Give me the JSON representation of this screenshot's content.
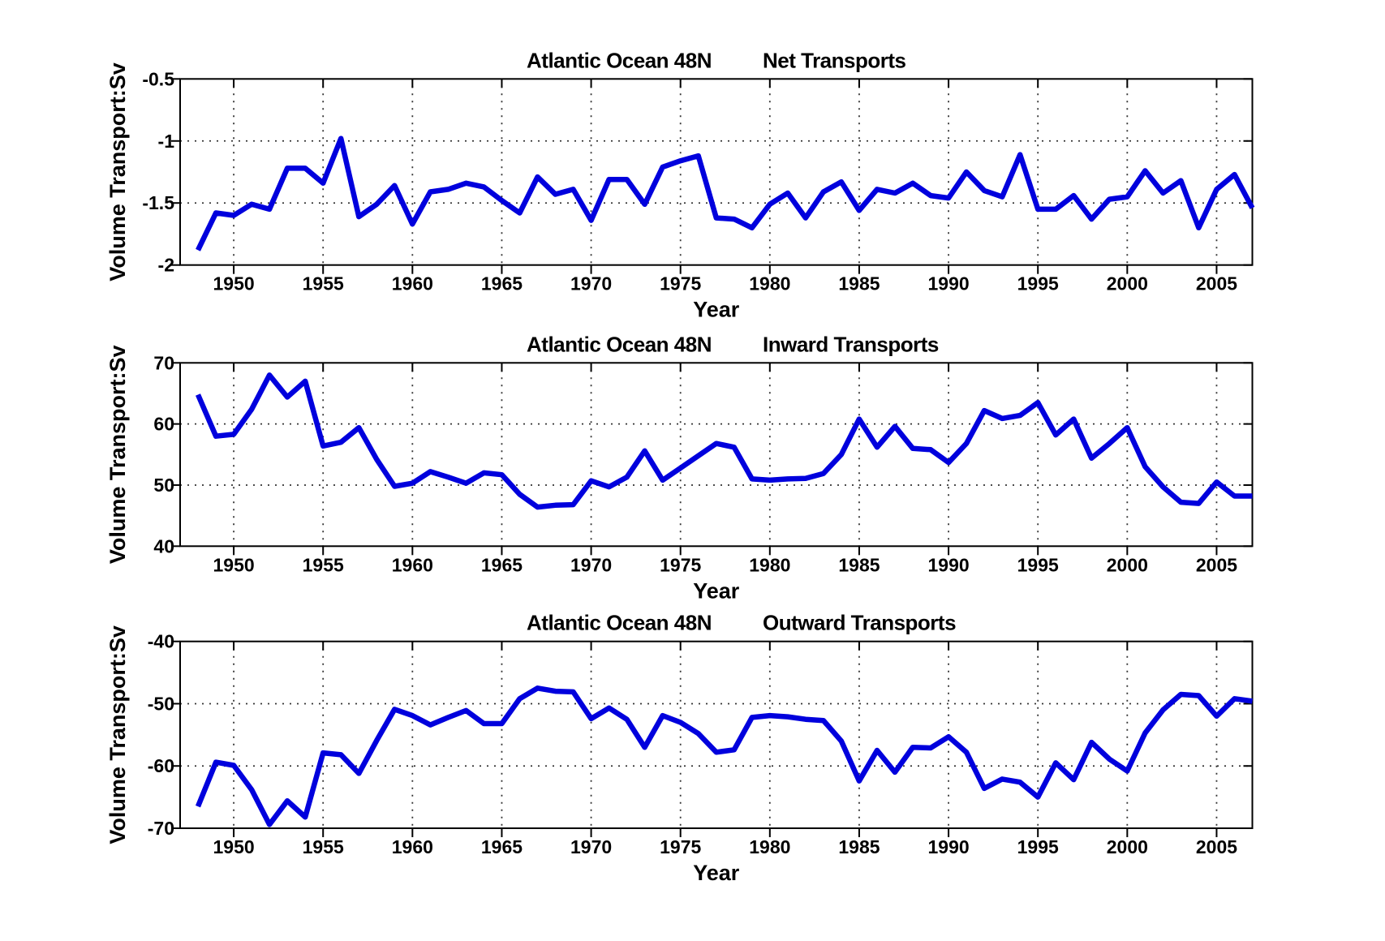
{
  "figure": {
    "background": "#ffffff",
    "line_color": "#0000dd",
    "axis_color": "#000000",
    "grid_color": "#333333"
  },
  "chart_data": [
    {
      "type": "line",
      "title_location": "Atlantic Ocean 48N",
      "title_label": "Net Transports",
      "ylabel": "Volume Transport:Sv",
      "xlabel": "Year",
      "legend": null,
      "grid": "dotted",
      "xlim": [
        1947,
        2007
      ],
      "ylim": [
        -2,
        -0.5
      ],
      "ytick_labels": [
        "-0.5",
        "-1",
        "-1.5",
        "-2"
      ],
      "yticks": [
        -0.5,
        -1,
        -1.5,
        -2
      ],
      "xtick_labels": [
        "1950",
        "1955",
        "1960",
        "1965",
        "1970",
        "1975",
        "1980",
        "1985",
        "1990",
        "1995",
        "2000",
        "2005"
      ],
      "xticks": [
        1950,
        1955,
        1960,
        1965,
        1970,
        1975,
        1980,
        1985,
        1990,
        1995,
        2000,
        2005
      ],
      "x": [
        1948,
        1949,
        1950,
        1951,
        1952,
        1953,
        1954,
        1955,
        1956,
        1957,
        1958,
        1959,
        1960,
        1961,
        1962,
        1963,
        1964,
        1965,
        1966,
        1967,
        1968,
        1969,
        1970,
        1971,
        1972,
        1973,
        1974,
        1975,
        1976,
        1977,
        1978,
        1979,
        1980,
        1981,
        1982,
        1983,
        1984,
        1985,
        1986,
        1987,
        1988,
        1989,
        1990,
        1991,
        1992,
        1993,
        1994,
        1995,
        1996,
        1997,
        1998,
        1999,
        2000,
        2001,
        2002,
        2003,
        2004,
        2005,
        2006,
        2007
      ],
      "values": [
        -1.88,
        -1.58,
        -1.6,
        -1.51,
        -1.55,
        -1.22,
        -1.22,
        -1.34,
        -0.98,
        -1.61,
        -1.51,
        -1.36,
        -1.67,
        -1.41,
        -1.39,
        -1.34,
        -1.37,
        -1.48,
        -1.58,
        -1.29,
        -1.43,
        -1.39,
        -1.64,
        -1.31,
        -1.31,
        -1.51,
        -1.21,
        -1.16,
        -1.12,
        -1.62,
        -1.63,
        -1.7,
        -1.51,
        -1.42,
        -1.62,
        -1.41,
        -1.33,
        -1.56,
        -1.39,
        -1.42,
        -1.34,
        -1.44,
        -1.46,
        -1.25,
        -1.4,
        -1.45,
        -1.11,
        -1.55,
        -1.55,
        -1.44,
        -1.63,
        -1.47,
        -1.45,
        -1.24,
        -1.42,
        -1.32,
        -1.7,
        -1.39,
        -1.27,
        -1.54
      ]
    },
    {
      "type": "line",
      "title_location": "Atlantic Ocean 48N",
      "title_label": "Inward Transports",
      "ylabel": "Volume Transport:Sv",
      "xlabel": "Year",
      "legend": null,
      "grid": "dotted",
      "xlim": [
        1947,
        2007
      ],
      "ylim": [
        40,
        70
      ],
      "ytick_labels": [
        "70",
        "60",
        "50",
        "40"
      ],
      "yticks": [
        70,
        60,
        50,
        40
      ],
      "xtick_labels": [
        "1950",
        "1955",
        "1960",
        "1965",
        "1970",
        "1975",
        "1980",
        "1985",
        "1990",
        "1995",
        "2000",
        "2005"
      ],
      "xticks": [
        1950,
        1955,
        1960,
        1965,
        1970,
        1975,
        1980,
        1985,
        1990,
        1995,
        2000,
        2005
      ],
      "x": [
        1948,
        1949,
        1950,
        1951,
        1952,
        1953,
        1954,
        1955,
        1956,
        1957,
        1958,
        1959,
        1960,
        1961,
        1962,
        1963,
        1964,
        1965,
        1966,
        1967,
        1968,
        1969,
        1970,
        1971,
        1972,
        1973,
        1974,
        1975,
        1976,
        1977,
        1978,
        1979,
        1980,
        1981,
        1982,
        1983,
        1984,
        1985,
        1986,
        1987,
        1988,
        1989,
        1990,
        1991,
        1992,
        1993,
        1994,
        1995,
        1996,
        1997,
        1998,
        1999,
        2000,
        2001,
        2002,
        2003,
        2004,
        2005,
        2006,
        2007
      ],
      "values": [
        64.8,
        58.0,
        58.3,
        62.4,
        68.0,
        64.4,
        67.0,
        56.4,
        57.0,
        59.4,
        54.2,
        49.8,
        50.3,
        52.2,
        51.3,
        50.3,
        52.0,
        51.7,
        48.5,
        46.4,
        46.7,
        46.8,
        50.7,
        49.7,
        51.3,
        55.6,
        50.8,
        52.8,
        54.8,
        56.8,
        56.2,
        51.0,
        50.8,
        51.0,
        51.1,
        51.9,
        55.0,
        60.8,
        56.2,
        59.6,
        56.0,
        55.8,
        53.7,
        56.8,
        62.2,
        60.9,
        61.4,
        63.5,
        58.2,
        60.8,
        54.4,
        56.8,
        59.4,
        53.0,
        49.7,
        47.2,
        47.0,
        50.5,
        48.2,
        48.2
      ]
    },
    {
      "type": "line",
      "title_location": "Atlantic Ocean 48N",
      "title_label": "Outward Transports",
      "ylabel": "Volume Transport:Sv",
      "xlabel": "Year",
      "legend": null,
      "grid": "dotted",
      "xlim": [
        1947,
        2007
      ],
      "ylim": [
        -70,
        -40
      ],
      "ytick_labels": [
        "-40",
        "-50",
        "-60",
        "-70"
      ],
      "yticks": [
        -40,
        -50,
        -60,
        -70
      ],
      "xtick_labels": [
        "1950",
        "1955",
        "1960",
        "1965",
        "1970",
        "1975",
        "1980",
        "1985",
        "1990",
        "1995",
        "2000",
        "2005"
      ],
      "xticks": [
        1950,
        1955,
        1960,
        1965,
        1970,
        1975,
        1980,
        1985,
        1990,
        1995,
        2000,
        2005
      ],
      "x": [
        1948,
        1949,
        1950,
        1951,
        1952,
        1953,
        1954,
        1955,
        1956,
        1957,
        1958,
        1959,
        1960,
        1961,
        1962,
        1963,
        1964,
        1965,
        1966,
        1967,
        1968,
        1969,
        1970,
        1971,
        1972,
        1973,
        1974,
        1975,
        1976,
        1977,
        1978,
        1979,
        1980,
        1981,
        1982,
        1983,
        1984,
        1985,
        1986,
        1987,
        1988,
        1989,
        1990,
        1991,
        1992,
        1993,
        1994,
        1995,
        1996,
        1997,
        1998,
        1999,
        2000,
        2001,
        2002,
        2003,
        2004,
        2005,
        2006,
        2007
      ],
      "values": [
        -66.5,
        -59.4,
        -59.9,
        -63.8,
        -69.4,
        -65.6,
        -68.2,
        -57.9,
        -58.2,
        -61.2,
        -55.9,
        -50.9,
        -51.9,
        -53.4,
        -52.2,
        -51.1,
        -53.2,
        -53.2,
        -49.2,
        -47.5,
        -48.0,
        -48.1,
        -52.4,
        -50.7,
        -52.5,
        -57.0,
        -51.9,
        -53.0,
        -54.8,
        -57.8,
        -57.4,
        -52.2,
        -51.9,
        -52.1,
        -52.5,
        -52.7,
        -56.0,
        -62.4,
        -57.5,
        -61.0,
        -57.0,
        -57.1,
        -55.3,
        -57.8,
        -63.6,
        -62.1,
        -62.6,
        -65.0,
        -59.5,
        -62.2,
        -56.2,
        -58.9,
        -60.8,
        -54.7,
        -51.0,
        -48.5,
        -48.7,
        -52.0,
        -49.2,
        -49.6
      ]
    }
  ]
}
